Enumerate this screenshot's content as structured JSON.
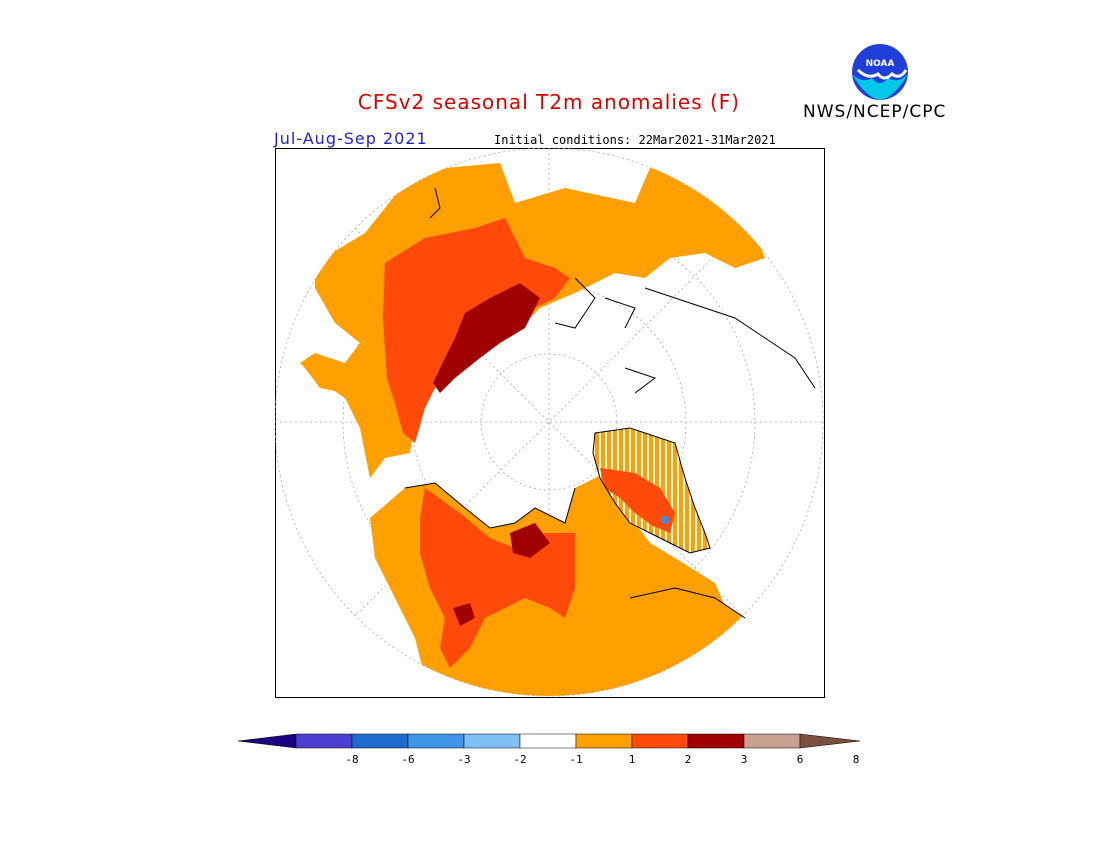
{
  "header": {
    "title": "CFSv2 seasonal T2m anomalies (F)",
    "agency": "NWS/NCEP/CPC",
    "season": "Jul-Aug-Sep 2021",
    "initial_conditions": "Initial conditions: 22Mar2021-31Mar2021",
    "logo_text": "NOAA"
  },
  "colors": {
    "title": "#dd0000",
    "season": "#2222dd",
    "ocean_white": "#ffffff",
    "anom_1_2": "#ffa000",
    "anom_2_3": "#ff4a0a",
    "anom_3_6": "#a00000",
    "anom_cold": "#3a8de0"
  },
  "colorbar": {
    "tick_labels": [
      "-8",
      "-6",
      "-3",
      "-2",
      "-1",
      "1",
      "2",
      "3",
      "6",
      "8"
    ],
    "colors": [
      "#1a0080",
      "#4a3fd0",
      "#1f6ad0",
      "#3f95e8",
      "#7ec0f4",
      "#ffffff",
      "#ffa000",
      "#ff4a0a",
      "#a00000",
      "#c8a090",
      "#7a5040"
    ]
  }
}
